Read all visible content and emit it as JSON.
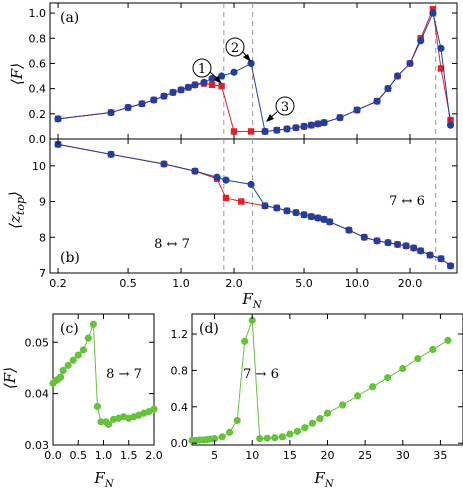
{
  "chart_data": [
    {
      "panel": "(a)",
      "type": "line",
      "x_scale": "log",
      "xlim": [
        0.18,
        37
      ],
      "ylim": [
        0,
        1.08
      ],
      "ylabel": "⟨F⟩",
      "x_ticks": [
        0.2,
        0.5,
        1.0,
        2.0,
        5.0,
        10.0,
        20.0
      ],
      "y_ticks": [
        0.0,
        0.2,
        0.4,
        0.6,
        0.8,
        1.0
      ],
      "vlines": [
        1.75,
        2.55,
        28.0
      ],
      "annotations": [
        "1",
        "2",
        "3"
      ],
      "series": [
        {
          "color": "#e0202a",
          "marker": "square",
          "points": [
            [
              0.2,
              0.16
            ],
            [
              0.4,
              0.21
            ],
            [
              0.5,
              0.25
            ],
            [
              0.6,
              0.28
            ],
            [
              0.7,
              0.31
            ],
            [
              0.8,
              0.34
            ],
            [
              0.9,
              0.37
            ],
            [
              1.0,
              0.39
            ],
            [
              1.1,
              0.41
            ],
            [
              1.2,
              0.43
            ],
            [
              1.35,
              0.44
            ],
            [
              1.5,
              0.43
            ],
            [
              1.7,
              0.42
            ],
            [
              2.0,
              0.06
            ],
            [
              2.5,
              0.06
            ],
            [
              3.0,
              0.06
            ],
            [
              3.5,
              0.07
            ],
            [
              4.0,
              0.08
            ],
            [
              4.5,
              0.09
            ],
            [
              5.0,
              0.1
            ],
            [
              5.5,
              0.11
            ],
            [
              6.0,
              0.12
            ],
            [
              6.5,
              0.13
            ],
            [
              8.0,
              0.17
            ],
            [
              10.0,
              0.23
            ],
            [
              13.0,
              0.3
            ],
            [
              15.0,
              0.4
            ],
            [
              17.0,
              0.5
            ],
            [
              20.0,
              0.6
            ],
            [
              23.0,
              0.8
            ],
            [
              27.0,
              1.03
            ],
            [
              30.0,
              0.56
            ],
            [
              34.0,
              0.15
            ]
          ]
        },
        {
          "color": "#2040a0",
          "marker": "circle",
          "points": [
            [
              0.2,
              0.16
            ],
            [
              0.4,
              0.21
            ],
            [
              0.5,
              0.25
            ],
            [
              0.6,
              0.28
            ],
            [
              0.7,
              0.31
            ],
            [
              0.8,
              0.34
            ],
            [
              0.9,
              0.37
            ],
            [
              1.0,
              0.39
            ],
            [
              1.1,
              0.41
            ],
            [
              1.2,
              0.43
            ],
            [
              1.35,
              0.45
            ],
            [
              1.5,
              0.48
            ],
            [
              1.7,
              0.5
            ],
            [
              2.0,
              0.53
            ],
            [
              2.5,
              0.6
            ],
            [
              3.0,
              0.06
            ],
            [
              3.5,
              0.07
            ],
            [
              4.0,
              0.08
            ],
            [
              4.5,
              0.09
            ],
            [
              5.0,
              0.1
            ],
            [
              5.5,
              0.11
            ],
            [
              6.0,
              0.12
            ],
            [
              6.5,
              0.13
            ],
            [
              8.0,
              0.17
            ],
            [
              10.0,
              0.23
            ],
            [
              13.0,
              0.3
            ],
            [
              15.0,
              0.4
            ],
            [
              17.0,
              0.5
            ],
            [
              20.0,
              0.6
            ],
            [
              23.0,
              0.78
            ],
            [
              27.0,
              1.0
            ],
            [
              30.0,
              0.72
            ],
            [
              34.0,
              0.11
            ]
          ]
        }
      ]
    },
    {
      "panel": "(b)",
      "type": "line",
      "x_scale": "log",
      "xlim": [
        0.18,
        37
      ],
      "ylim": [
        7.0,
        10.75
      ],
      "ylabel": "⟨z_top⟩",
      "xlabel": "F_N",
      "x_ticks": [
        0.2,
        0.5,
        1.0,
        2.0,
        5.0,
        10.0,
        20.0
      ],
      "y_ticks": [
        7.0,
        8.0,
        9.0,
        10.0
      ],
      "vlines": [
        1.75,
        2.55,
        28.0
      ],
      "annotations": [
        "8 ↔ 7",
        "7 ↔ 6"
      ],
      "series": [
        {
          "color": "#e0202a",
          "marker": "square",
          "points": [
            [
              0.2,
              10.6
            ],
            [
              0.4,
              10.32
            ],
            [
              0.8,
              10.05
            ],
            [
              1.2,
              9.85
            ],
            [
              1.6,
              9.64
            ],
            [
              1.8,
              9.1
            ],
            [
              2.2,
              9.0
            ],
            [
              3.0,
              8.88
            ],
            [
              3.5,
              8.82
            ],
            [
              4.0,
              8.74
            ],
            [
              4.5,
              8.69
            ],
            [
              5.0,
              8.63
            ],
            [
              5.5,
              8.58
            ],
            [
              6.0,
              8.54
            ],
            [
              6.5,
              8.5
            ],
            [
              7.0,
              8.43
            ],
            [
              9.0,
              8.2
            ],
            [
              11.0,
              8.0
            ],
            [
              13.0,
              7.9
            ],
            [
              15.0,
              7.85
            ],
            [
              17.0,
              7.8
            ],
            [
              19.0,
              7.76
            ],
            [
              21.0,
              7.7
            ],
            [
              23.0,
              7.62
            ],
            [
              26.0,
              7.5
            ],
            [
              30.0,
              7.4
            ],
            [
              34.0,
              7.2
            ]
          ]
        },
        {
          "color": "#2040a0",
          "marker": "circle",
          "points": [
            [
              0.2,
              10.6
            ],
            [
              0.4,
              10.32
            ],
            [
              0.8,
              10.05
            ],
            [
              1.2,
              9.85
            ],
            [
              1.6,
              9.68
            ],
            [
              1.8,
              9.6
            ],
            [
              2.5,
              9.48
            ],
            [
              3.0,
              8.88
            ],
            [
              3.5,
              8.82
            ],
            [
              4.0,
              8.74
            ],
            [
              4.5,
              8.69
            ],
            [
              5.0,
              8.63
            ],
            [
              5.5,
              8.58
            ],
            [
              6.0,
              8.54
            ],
            [
              6.5,
              8.5
            ],
            [
              7.0,
              8.43
            ],
            [
              9.0,
              8.2
            ],
            [
              11.0,
              8.0
            ],
            [
              13.0,
              7.9
            ],
            [
              15.0,
              7.85
            ],
            [
              17.0,
              7.8
            ],
            [
              19.0,
              7.76
            ],
            [
              21.0,
              7.7
            ],
            [
              23.0,
              7.62
            ],
            [
              26.0,
              7.5
            ],
            [
              30.0,
              7.4
            ],
            [
              34.0,
              7.2
            ]
          ]
        }
      ]
    },
    {
      "panel": "(c)",
      "type": "line",
      "xlim": [
        0,
        2.0
      ],
      "ylim": [
        0.03,
        0.0555
      ],
      "ylabel": "⟨F⟩",
      "xlabel": "F_N",
      "x_ticks": [
        0.0,
        0.5,
        1.0,
        1.5,
        2.0
      ],
      "y_ticks": [
        0.03,
        0.04,
        0.05
      ],
      "annotations": [
        "8 → 7"
      ],
      "series": [
        {
          "color": "#66c23a",
          "marker": "circle",
          "points": [
            [
              0.0,
              0.042
            ],
            [
              0.05,
              0.0425
            ],
            [
              0.1,
              0.0428
            ],
            [
              0.15,
              0.0432
            ],
            [
              0.2,
              0.0445
            ],
            [
              0.3,
              0.0455
            ],
            [
              0.4,
              0.0465
            ],
            [
              0.5,
              0.0475
            ],
            [
              0.6,
              0.0485
            ],
            [
              0.7,
              0.0508
            ],
            [
              0.8,
              0.0535
            ],
            [
              0.88,
              0.0375
            ],
            [
              0.95,
              0.0345
            ],
            [
              1.05,
              0.0345
            ],
            [
              1.1,
              0.034
            ],
            [
              1.2,
              0.035
            ],
            [
              1.3,
              0.0352
            ],
            [
              1.4,
              0.0355
            ],
            [
              1.5,
              0.0352
            ],
            [
              1.6,
              0.0355
            ],
            [
              1.7,
              0.0358
            ],
            [
              1.8,
              0.0362
            ],
            [
              1.9,
              0.0365
            ],
            [
              2.0,
              0.037
            ]
          ]
        }
      ]
    },
    {
      "panel": "(d)",
      "type": "line",
      "xlim": [
        2,
        38
      ],
      "ylim": [
        -0.02,
        1.42
      ],
      "xlabel": "F_N",
      "x_ticks": [
        5,
        10,
        15,
        20,
        25,
        30,
        35
      ],
      "y_ticks": [
        0.0,
        0.4,
        0.8,
        1.2
      ],
      "annotations": [
        "7 → 6"
      ],
      "series": [
        {
          "color": "#66c23a",
          "marker": "circle",
          "points": [
            [
              2.0,
              0.03
            ],
            [
              2.5,
              0.03
            ],
            [
              3.0,
              0.035
            ],
            [
              3.5,
              0.035
            ],
            [
              4.0,
              0.04
            ],
            [
              4.5,
              0.045
            ],
            [
              5.0,
              0.05
            ],
            [
              6.0,
              0.07
            ],
            [
              7.0,
              0.12
            ],
            [
              8.0,
              0.25
            ],
            [
              9.0,
              1.12
            ],
            [
              10.0,
              1.35
            ],
            [
              11.0,
              0.05
            ],
            [
              12.0,
              0.055
            ],
            [
              13.0,
              0.06
            ],
            [
              14.0,
              0.07
            ],
            [
              15.0,
              0.1
            ],
            [
              16.0,
              0.13
            ],
            [
              17.0,
              0.17
            ],
            [
              18.0,
              0.22
            ],
            [
              19.0,
              0.27
            ],
            [
              20.0,
              0.33
            ],
            [
              22.0,
              0.42
            ],
            [
              24.0,
              0.52
            ],
            [
              26.0,
              0.62
            ],
            [
              28.0,
              0.72
            ],
            [
              30.0,
              0.82
            ],
            [
              32.0,
              0.93
            ],
            [
              34.0,
              1.03
            ],
            [
              36.0,
              1.13
            ]
          ]
        }
      ]
    }
  ]
}
